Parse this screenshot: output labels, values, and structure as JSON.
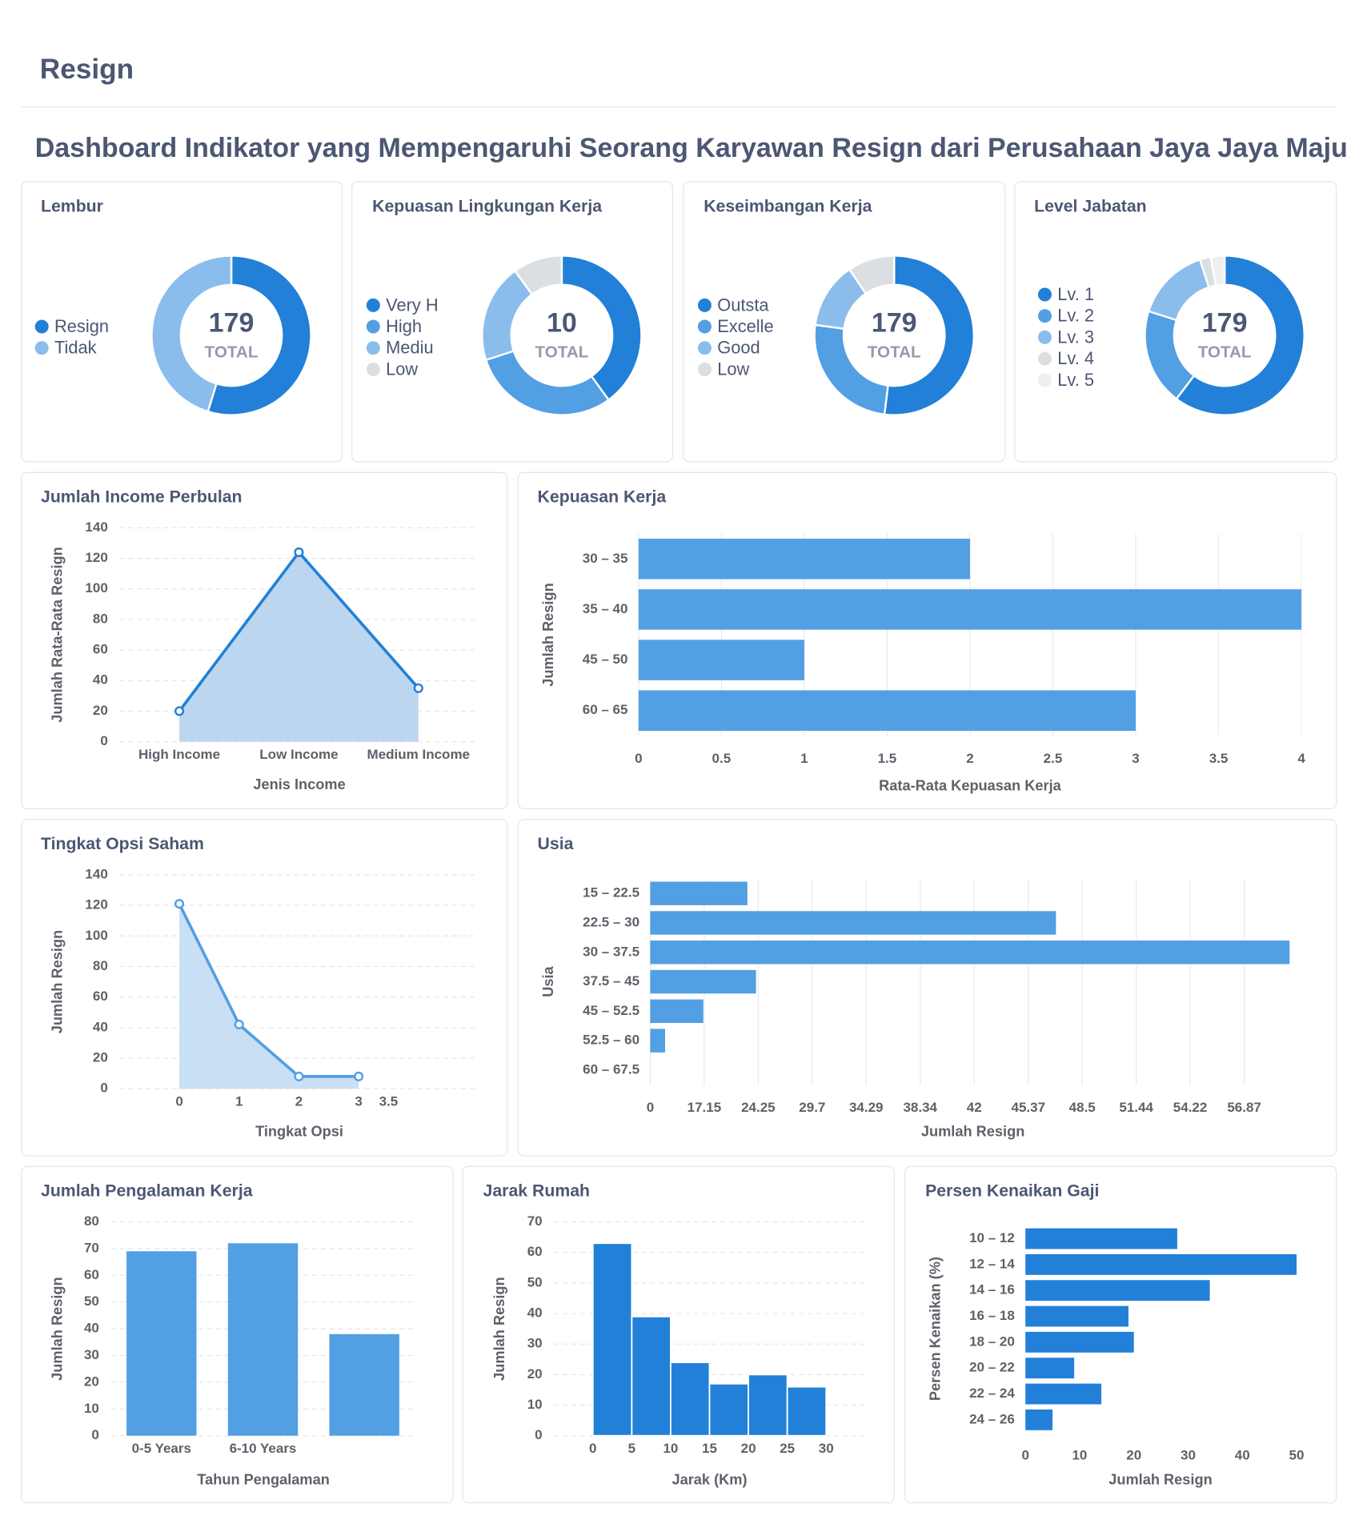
{
  "header": {
    "title": "Resign"
  },
  "dashboard": {
    "title": "Dashboard Indikator yang Mempengaruhi Seorang Karyawan Resign dari Perusahaan Jaya Jaya Maju"
  },
  "chart_data": [
    {
      "type": "donut",
      "title": "Lembur",
      "categories": [
        "Resign",
        "Tidak"
      ],
      "values": [
        98,
        81
      ],
      "colors": [
        "#2280d8",
        "#8bbdec"
      ],
      "total": 179,
      "total_label": "TOTAL"
    },
    {
      "type": "donut",
      "title": "Kepuasan Lingkungan Kerja",
      "categories": [
        "Very H",
        "High",
        "Mediu",
        "Low"
      ],
      "values": [
        4,
        3,
        2,
        1
      ],
      "colors": [
        "#2280d8",
        "#529fe3",
        "#8bbdec",
        "#dcdfe1"
      ],
      "total": 10,
      "total_label": "TOTAL"
    },
    {
      "type": "donut",
      "title": "Keseimbangan Kerja",
      "categories": [
        "Outsta",
        "Excelle",
        "Good",
        "Low"
      ],
      "values": [
        93,
        45,
        24,
        17
      ],
      "colors": [
        "#2280d8",
        "#529fe3",
        "#8bbdec",
        "#dcdfe1"
      ],
      "total": 179,
      "total_label": "TOTAL"
    },
    {
      "type": "donut",
      "title": "Level Jabatan",
      "categories": [
        "Lv. 1",
        "Lv. 2",
        "Lv. 3",
        "Lv. 4",
        "Lv. 5"
      ],
      "values": [
        108,
        35,
        27,
        4,
        5
      ],
      "colors": [
        "#2280d8",
        "#529fe3",
        "#8bbdec",
        "#dcdfe1",
        "#efefef"
      ],
      "total": 179,
      "total_label": "TOTAL"
    },
    {
      "type": "area",
      "title": "Jumlah Income Perbulan",
      "categories": [
        "High Income",
        "Low Income",
        "Medium Income"
      ],
      "values": [
        20,
        124,
        35
      ],
      "color": "#2280d8",
      "fill": "#bdd6ef",
      "xlabel": "Jenis Income",
      "ylabel": "Jumlah Rata-Rata Resign",
      "ylim": [
        0,
        140
      ],
      "yticks": [
        0,
        20,
        40,
        60,
        80,
        100,
        120,
        140
      ],
      "grid": true
    },
    {
      "type": "hbar",
      "title": "Kepuasan Kerja",
      "categories": [
        "30 – 35",
        "35 – 40",
        "45 – 50",
        "60 – 65"
      ],
      "values": [
        2,
        4,
        1,
        3
      ],
      "color": "#529fe3",
      "xlabel": "Rata-Rata Kepuasan Kerja",
      "ylabel": "Jumlah Resign",
      "xlim": [
        0,
        4
      ],
      "xticks": [
        0,
        0.5,
        1,
        1.5,
        2,
        2.5,
        3,
        3.5,
        4
      ],
      "grid": true
    },
    {
      "type": "area",
      "title": "Tingkat Opsi Saham",
      "x": [
        0,
        1,
        2,
        3
      ],
      "values": [
        121,
        42,
        8,
        8
      ],
      "color": "#529fe3",
      "fill": "#c9dff4",
      "xlabel": "Tingkat Opsi",
      "ylabel": "Jumlah Resign",
      "xlim": [
        -1,
        5
      ],
      "xticks": [
        0,
        1,
        2,
        3,
        3.5
      ],
      "ylim": [
        0,
        140
      ],
      "yticks": [
        0,
        20,
        40,
        60,
        80,
        100,
        120,
        140
      ],
      "grid": true
    },
    {
      "type": "hbar",
      "title": "Usia",
      "categories": [
        "15 – 22.5",
        "22.5 – 30",
        "30 – 37.5",
        "37.5 – 45",
        "45 – 52.5",
        "52.5 – 60",
        "60 – 67.5"
      ],
      "values": [
        23,
        47,
        59,
        24,
        17,
        9,
        0
      ],
      "color": "#529fe3",
      "xlabel": "Jumlah Resign",
      "ylabel": "Usia",
      "xscale": "pow",
      "xexponent": 2,
      "xlim": [
        0,
        59.5
      ],
      "xticks": [
        0,
        17.15,
        24.25,
        29.7,
        34.29,
        38.34,
        42,
        45.37,
        48.5,
        51.44,
        54.22,
        56.87
      ],
      "grid": true
    },
    {
      "type": "bar",
      "title": "Jumlah Pengalaman Kerja",
      "categories": [
        "0-5 Years",
        "6-10 Years",
        null
      ],
      "values": [
        69,
        72,
        38
      ],
      "color": "#529fe3",
      "xlabel": "Tahun Pengalaman",
      "ylabel": "Jumlah Resign",
      "ylim": [
        0,
        80
      ],
      "yticks": [
        0,
        10,
        20,
        30,
        40,
        50,
        60,
        70,
        80
      ],
      "grid": true
    },
    {
      "type": "histogram",
      "title": "Jarak Rumah",
      "bins": [
        0,
        5,
        10,
        15,
        20,
        25,
        30
      ],
      "values": [
        63,
        39,
        24,
        17,
        20,
        16
      ],
      "color": "#2280d8",
      "xlabel": "Jarak (Km)",
      "ylabel": "Jumlah Resign",
      "xlim": [
        -5,
        35
      ],
      "xticks": [
        0,
        5,
        10,
        15,
        20,
        25,
        30
      ],
      "ylim": [
        0,
        70
      ],
      "yticks": [
        0,
        10,
        20,
        30,
        40,
        50,
        60,
        70
      ],
      "grid": true
    },
    {
      "type": "hbar",
      "title": "Persen Kenaikan Gaji",
      "categories": [
        "10 – 12",
        "12 – 14",
        "14 – 16",
        "16 – 18",
        "18 – 20",
        "20 – 22",
        "22 – 24",
        "24 – 26"
      ],
      "values": [
        28,
        50,
        34,
        19,
        20,
        9,
        14,
        5
      ],
      "color": "#2280d8",
      "xlabel": "Jumlah Resign",
      "ylabel": "Persen Kenaikan (%)",
      "xlim": [
        0,
        50
      ],
      "xticks": [
        0,
        10,
        20,
        30,
        40,
        50
      ],
      "grid": false
    }
  ]
}
